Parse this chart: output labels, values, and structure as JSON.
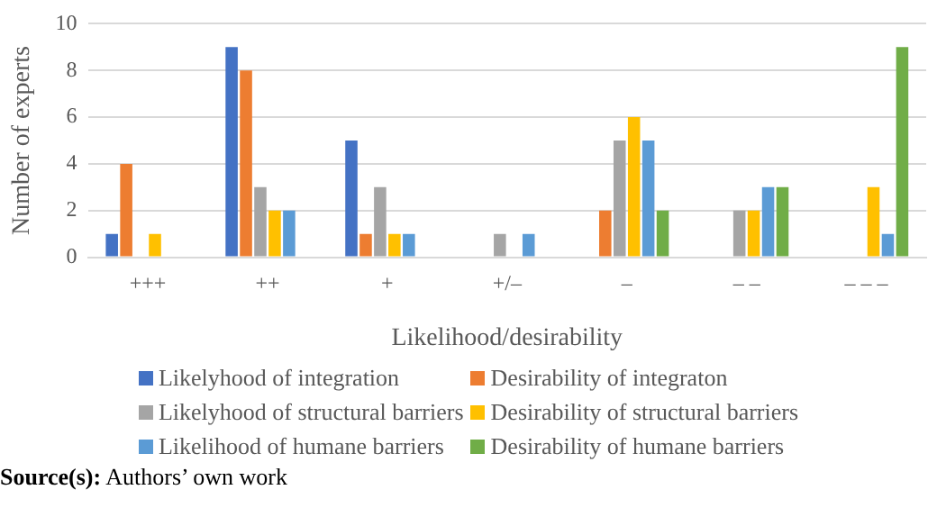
{
  "chart_data": {
    "type": "bar",
    "categories": [
      "+++",
      "++",
      "+",
      "+/–",
      "–",
      "– –",
      "– – –"
    ],
    "xlabel": "Likelihood/desirability",
    "ylabel": "Number of experts",
    "ylim": [
      0,
      10
    ],
    "yticks": [
      0,
      2,
      4,
      6,
      8,
      10
    ],
    "grid": "y",
    "legend": "bottom",
    "series": [
      {
        "name": "Likelyhood of integration",
        "color": "#4472c4",
        "values": [
          1,
          9,
          5,
          0,
          0,
          0,
          0
        ]
      },
      {
        "name": "Desirability of integraton",
        "color": "#ed7d31",
        "values": [
          4,
          8,
          1,
          0,
          2,
          0,
          0
        ]
      },
      {
        "name": "Likelyhood of structural barriers",
        "color": "#a5a5a5",
        "values": [
          0,
          3,
          3,
          1,
          5,
          2,
          0
        ]
      },
      {
        "name": "Desirability of structural barriers",
        "color": "#ffc000",
        "values": [
          1,
          2,
          1,
          0,
          6,
          2,
          3
        ]
      },
      {
        "name": "Likelihood of humane barriers",
        "color": "#5b9bd5",
        "values": [
          0,
          2,
          1,
          1,
          5,
          3,
          1
        ]
      },
      {
        "name": "Desirability of humane barriers",
        "color": "#70ad47",
        "values": [
          0,
          0,
          0,
          0,
          2,
          3,
          9
        ]
      }
    ],
    "annotations": [
      "Source(s): Authors’ own work"
    ]
  }
}
